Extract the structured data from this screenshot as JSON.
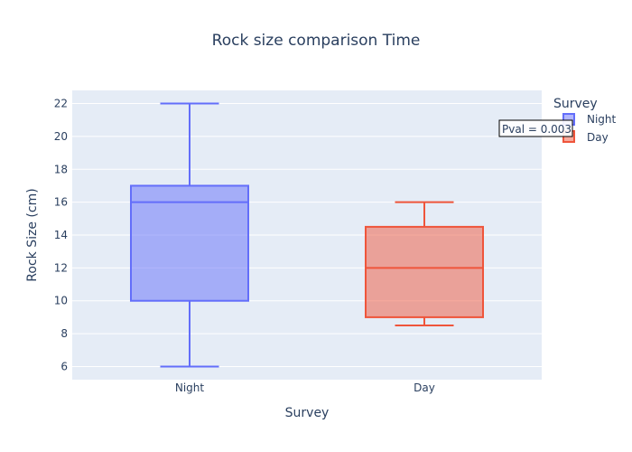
{
  "chart_data": {
    "type": "box",
    "title": "Rock size comparison Time",
    "xlabel": "Survey",
    "ylabel": "Rock Size (cm)",
    "categories": [
      "Night",
      "Day"
    ],
    "ylim": [
      5.2,
      22.8
    ],
    "yticks": [
      6,
      8,
      10,
      12,
      14,
      16,
      18,
      20,
      22
    ],
    "ytick_labels": [
      "6",
      "8",
      "10",
      "12",
      "14",
      "16",
      "18",
      "20",
      "22"
    ],
    "grid": true,
    "legend": {
      "title": "Survey",
      "placement": "top-right",
      "entries": [
        "Night",
        "Day"
      ]
    },
    "series": [
      {
        "name": "Night",
        "color": "#636efa",
        "min": 6,
        "q1": 10,
        "median": 16,
        "q3": 17,
        "max": 22
      },
      {
        "name": "Day",
        "color": "#ef553b",
        "min": 8.5,
        "q1": 9,
        "median": 12,
        "q3": 14.5,
        "max": 16
      }
    ],
    "annotation": {
      "text": "Pval = 0.003"
    }
  },
  "colors": {
    "plot_bg": "#e5ecf6",
    "grid": "#ffffff",
    "text": "#2a3f5f"
  }
}
